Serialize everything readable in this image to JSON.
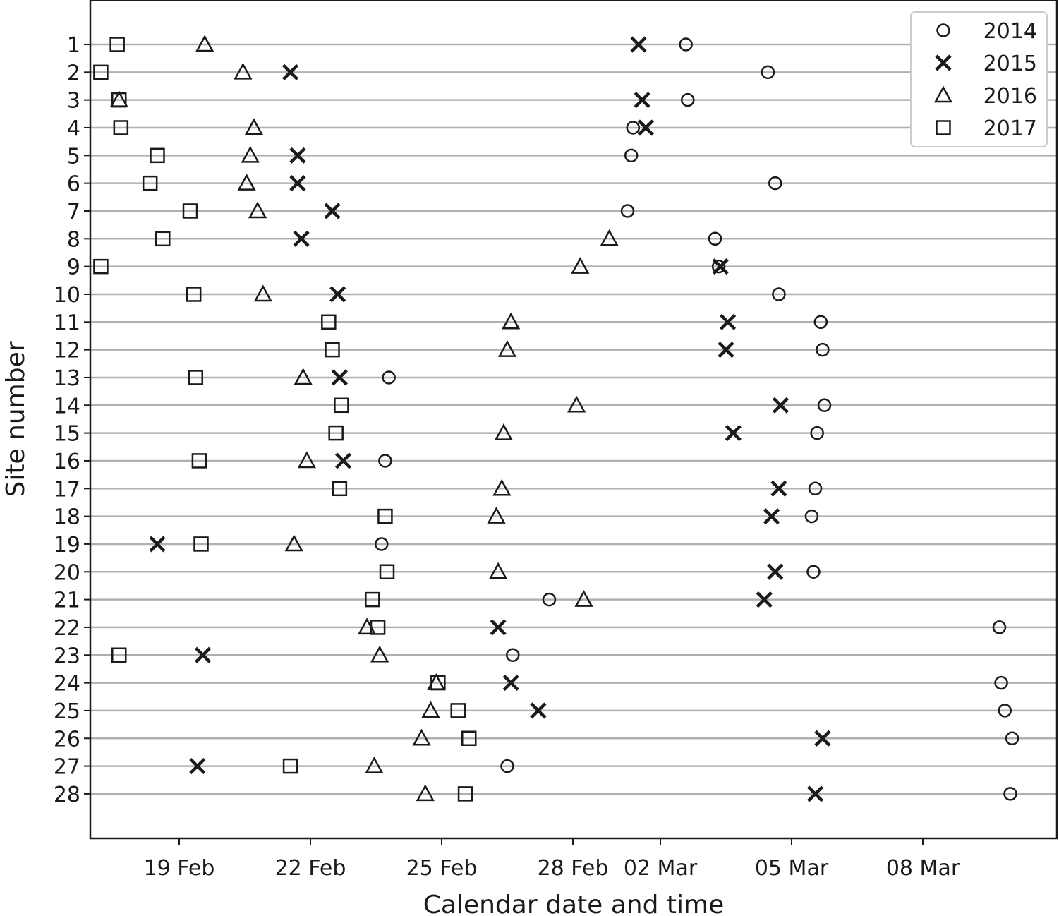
{
  "chart_data": {
    "type": "scatter",
    "title": "",
    "xlabel": "Calendar date and time",
    "ylabel": "Site number",
    "x_unit": "date",
    "xlim": [
      "2017-02-16T21:00",
      "2017-03-10T21:00"
    ],
    "ylim": [
      29.5,
      -0.5
    ],
    "y_inverted": true,
    "grid": "horizontal",
    "legend_position": "top-right",
    "x_ticks": [
      {
        "value": "2017-02-19",
        "label": "19 Feb"
      },
      {
        "value": "2017-02-22",
        "label": "22 Feb"
      },
      {
        "value": "2017-02-25",
        "label": "25 Feb"
      },
      {
        "value": "2017-02-28",
        "label": "28 Feb"
      },
      {
        "value": "2017-03-02",
        "label": "02 Mar"
      },
      {
        "value": "2017-03-05",
        "label": "05 Mar"
      },
      {
        "value": "2017-03-08",
        "label": "08 Mar"
      }
    ],
    "y_ticks": [
      "1",
      "2",
      "3",
      "4",
      "5",
      "6",
      "7",
      "8",
      "9",
      "10",
      "11",
      "12",
      "13",
      "14",
      "15",
      "16",
      "17",
      "18",
      "19",
      "20",
      "21",
      "22",
      "23",
      "24",
      "25",
      "26",
      "27",
      "28"
    ],
    "series": [
      {
        "name": "2014",
        "marker": "circle",
        "points": [
          {
            "site": 1,
            "x": "2017-03-02T14:00"
          },
          {
            "site": 2,
            "x": "2017-03-04T11:00"
          },
          {
            "site": 3,
            "x": "2017-03-02T15:00"
          },
          {
            "site": 4,
            "x": "2017-03-01T09:00"
          },
          {
            "site": 5,
            "x": "2017-03-01T08:00"
          },
          {
            "site": 6,
            "x": "2017-03-04T15:00"
          },
          {
            "site": 7,
            "x": "2017-03-01T06:00"
          },
          {
            "site": 8,
            "x": "2017-03-03T06:00"
          },
          {
            "site": 9,
            "x": "2017-03-03T08:00"
          },
          {
            "site": 10,
            "x": "2017-03-04T17:00"
          },
          {
            "site": 11,
            "x": "2017-03-05T16:00"
          },
          {
            "site": 12,
            "x": "2017-03-05T17:00"
          },
          {
            "site": 13,
            "x": "2017-02-23T19:00"
          },
          {
            "site": 14,
            "x": "2017-03-05T18:00"
          },
          {
            "site": 15,
            "x": "2017-03-05T14:00"
          },
          {
            "site": 16,
            "x": "2017-02-23T17:00"
          },
          {
            "site": 17,
            "x": "2017-03-05T13:00"
          },
          {
            "site": 18,
            "x": "2017-03-05T11:00"
          },
          {
            "site": 19,
            "x": "2017-02-23T15:00"
          },
          {
            "site": 20,
            "x": "2017-03-05T12:00"
          },
          {
            "site": 21,
            "x": "2017-02-27T11:00"
          },
          {
            "site": 22,
            "x": "2017-03-09T18:00"
          },
          {
            "site": 23,
            "x": "2017-02-26T15:00"
          },
          {
            "site": 24,
            "x": "2017-03-09T19:00"
          },
          {
            "site": 25,
            "x": "2017-03-09T21:00"
          },
          {
            "site": 26,
            "x": "2017-03-10T01:00"
          },
          {
            "site": 27,
            "x": "2017-02-26T12:00"
          },
          {
            "site": 28,
            "x": "2017-03-10T00:00"
          }
        ]
      },
      {
        "name": "2015",
        "marker": "x",
        "points": [
          {
            "site": 1,
            "x": "2017-03-01T12:00"
          },
          {
            "site": 2,
            "x": "2017-02-21T13:00"
          },
          {
            "site": 3,
            "x": "2017-03-01T14:00"
          },
          {
            "site": 4,
            "x": "2017-03-01T16:00"
          },
          {
            "site": 5,
            "x": "2017-02-21T17:00"
          },
          {
            "site": 6,
            "x": "2017-02-21T17:00"
          },
          {
            "site": 7,
            "x": "2017-02-22T12:00"
          },
          {
            "site": 8,
            "x": "2017-02-21T19:00"
          },
          {
            "site": 9,
            "x": "2017-03-03T09:00"
          },
          {
            "site": 10,
            "x": "2017-02-22T15:00"
          },
          {
            "site": 11,
            "x": "2017-03-03T13:00"
          },
          {
            "site": 12,
            "x": "2017-03-03T12:00"
          },
          {
            "site": 13,
            "x": "2017-02-22T16:00"
          },
          {
            "site": 14,
            "x": "2017-03-04T18:00"
          },
          {
            "site": 15,
            "x": "2017-03-03T16:00"
          },
          {
            "site": 16,
            "x": "2017-02-22T18:00"
          },
          {
            "site": 17,
            "x": "2017-03-04T17:00"
          },
          {
            "site": 18,
            "x": "2017-03-04T13:00"
          },
          {
            "site": 19,
            "x": "2017-02-18T12:00"
          },
          {
            "site": 20,
            "x": "2017-03-04T15:00"
          },
          {
            "site": 21,
            "x": "2017-03-04T09:00"
          },
          {
            "site": 22,
            "x": "2017-02-26T07:00"
          },
          {
            "site": 23,
            "x": "2017-02-19T13:00"
          },
          {
            "site": 24,
            "x": "2017-02-26T14:00"
          },
          {
            "site": 25,
            "x": "2017-02-27T05:00"
          },
          {
            "site": 26,
            "x": "2017-03-05T17:00"
          },
          {
            "site": 27,
            "x": "2017-02-19T10:00"
          },
          {
            "site": 28,
            "x": "2017-03-05T13:00"
          }
        ]
      },
      {
        "name": "2016",
        "marker": "triangle",
        "points": [
          {
            "site": 1,
            "x": "2017-02-19T14:00"
          },
          {
            "site": 2,
            "x": "2017-02-20T11:00"
          },
          {
            "site": 3,
            "x": "2017-02-17T15:00"
          },
          {
            "site": 4,
            "x": "2017-02-20T17:00"
          },
          {
            "site": 5,
            "x": "2017-02-20T15:00"
          },
          {
            "site": 6,
            "x": "2017-02-20T13:00"
          },
          {
            "site": 7,
            "x": "2017-02-20T19:00"
          },
          {
            "site": 8,
            "x": "2017-02-28T20:00"
          },
          {
            "site": 9,
            "x": "2017-02-28T04:00"
          },
          {
            "site": 10,
            "x": "2017-02-20T22:00"
          },
          {
            "site": 11,
            "x": "2017-02-26T14:00"
          },
          {
            "site": 12,
            "x": "2017-02-26T12:00"
          },
          {
            "site": 13,
            "x": "2017-02-21T20:00"
          },
          {
            "site": 14,
            "x": "2017-02-28T02:00"
          },
          {
            "site": 15,
            "x": "2017-02-26T10:00"
          },
          {
            "site": 16,
            "x": "2017-02-21T22:00"
          },
          {
            "site": 17,
            "x": "2017-02-26T09:00"
          },
          {
            "site": 18,
            "x": "2017-02-26T06:00"
          },
          {
            "site": 19,
            "x": "2017-02-21T15:00"
          },
          {
            "site": 20,
            "x": "2017-02-26T07:00"
          },
          {
            "site": 21,
            "x": "2017-02-28T06:00"
          },
          {
            "site": 22,
            "x": "2017-02-23T07:00"
          },
          {
            "site": 23,
            "x": "2017-02-23T14:00"
          },
          {
            "site": 24,
            "x": "2017-02-24T21:00"
          },
          {
            "site": 25,
            "x": "2017-02-24T18:00"
          },
          {
            "site": 26,
            "x": "2017-02-24T13:00"
          },
          {
            "site": 27,
            "x": "2017-02-23T11:00"
          },
          {
            "site": 28,
            "x": "2017-02-24T15:00"
          }
        ]
      },
      {
        "name": "2017",
        "marker": "square",
        "points": [
          {
            "site": 1,
            "x": "2017-02-17T14:00"
          },
          {
            "site": 2,
            "x": "2017-02-17T05:00"
          },
          {
            "site": 3,
            "x": "2017-02-17T15:00"
          },
          {
            "site": 4,
            "x": "2017-02-17T16:00"
          },
          {
            "site": 5,
            "x": "2017-02-18T12:00"
          },
          {
            "site": 6,
            "x": "2017-02-18T08:00"
          },
          {
            "site": 7,
            "x": "2017-02-19T06:00"
          },
          {
            "site": 8,
            "x": "2017-02-18T15:00"
          },
          {
            "site": 9,
            "x": "2017-02-17T05:00"
          },
          {
            "site": 10,
            "x": "2017-02-19T08:00"
          },
          {
            "site": 11,
            "x": "2017-02-22T10:00"
          },
          {
            "site": 12,
            "x": "2017-02-22T12:00"
          },
          {
            "site": 13,
            "x": "2017-02-19T09:00"
          },
          {
            "site": 14,
            "x": "2017-02-22T17:00"
          },
          {
            "site": 15,
            "x": "2017-02-22T14:00"
          },
          {
            "site": 16,
            "x": "2017-02-19T11:00"
          },
          {
            "site": 17,
            "x": "2017-02-22T16:00"
          },
          {
            "site": 18,
            "x": "2017-02-23T17:00"
          },
          {
            "site": 19,
            "x": "2017-02-19T12:00"
          },
          {
            "site": 20,
            "x": "2017-02-23T18:00"
          },
          {
            "site": 21,
            "x": "2017-02-23T10:00"
          },
          {
            "site": 22,
            "x": "2017-02-23T13:00"
          },
          {
            "site": 23,
            "x": "2017-02-17T15:00"
          },
          {
            "site": 24,
            "x": "2017-02-24T22:00"
          },
          {
            "site": 25,
            "x": "2017-02-25T09:00"
          },
          {
            "site": 26,
            "x": "2017-02-25T15:00"
          },
          {
            "site": 27,
            "x": "2017-02-21T13:00"
          },
          {
            "site": 28,
            "x": "2017-02-25T13:00"
          }
        ]
      }
    ]
  }
}
